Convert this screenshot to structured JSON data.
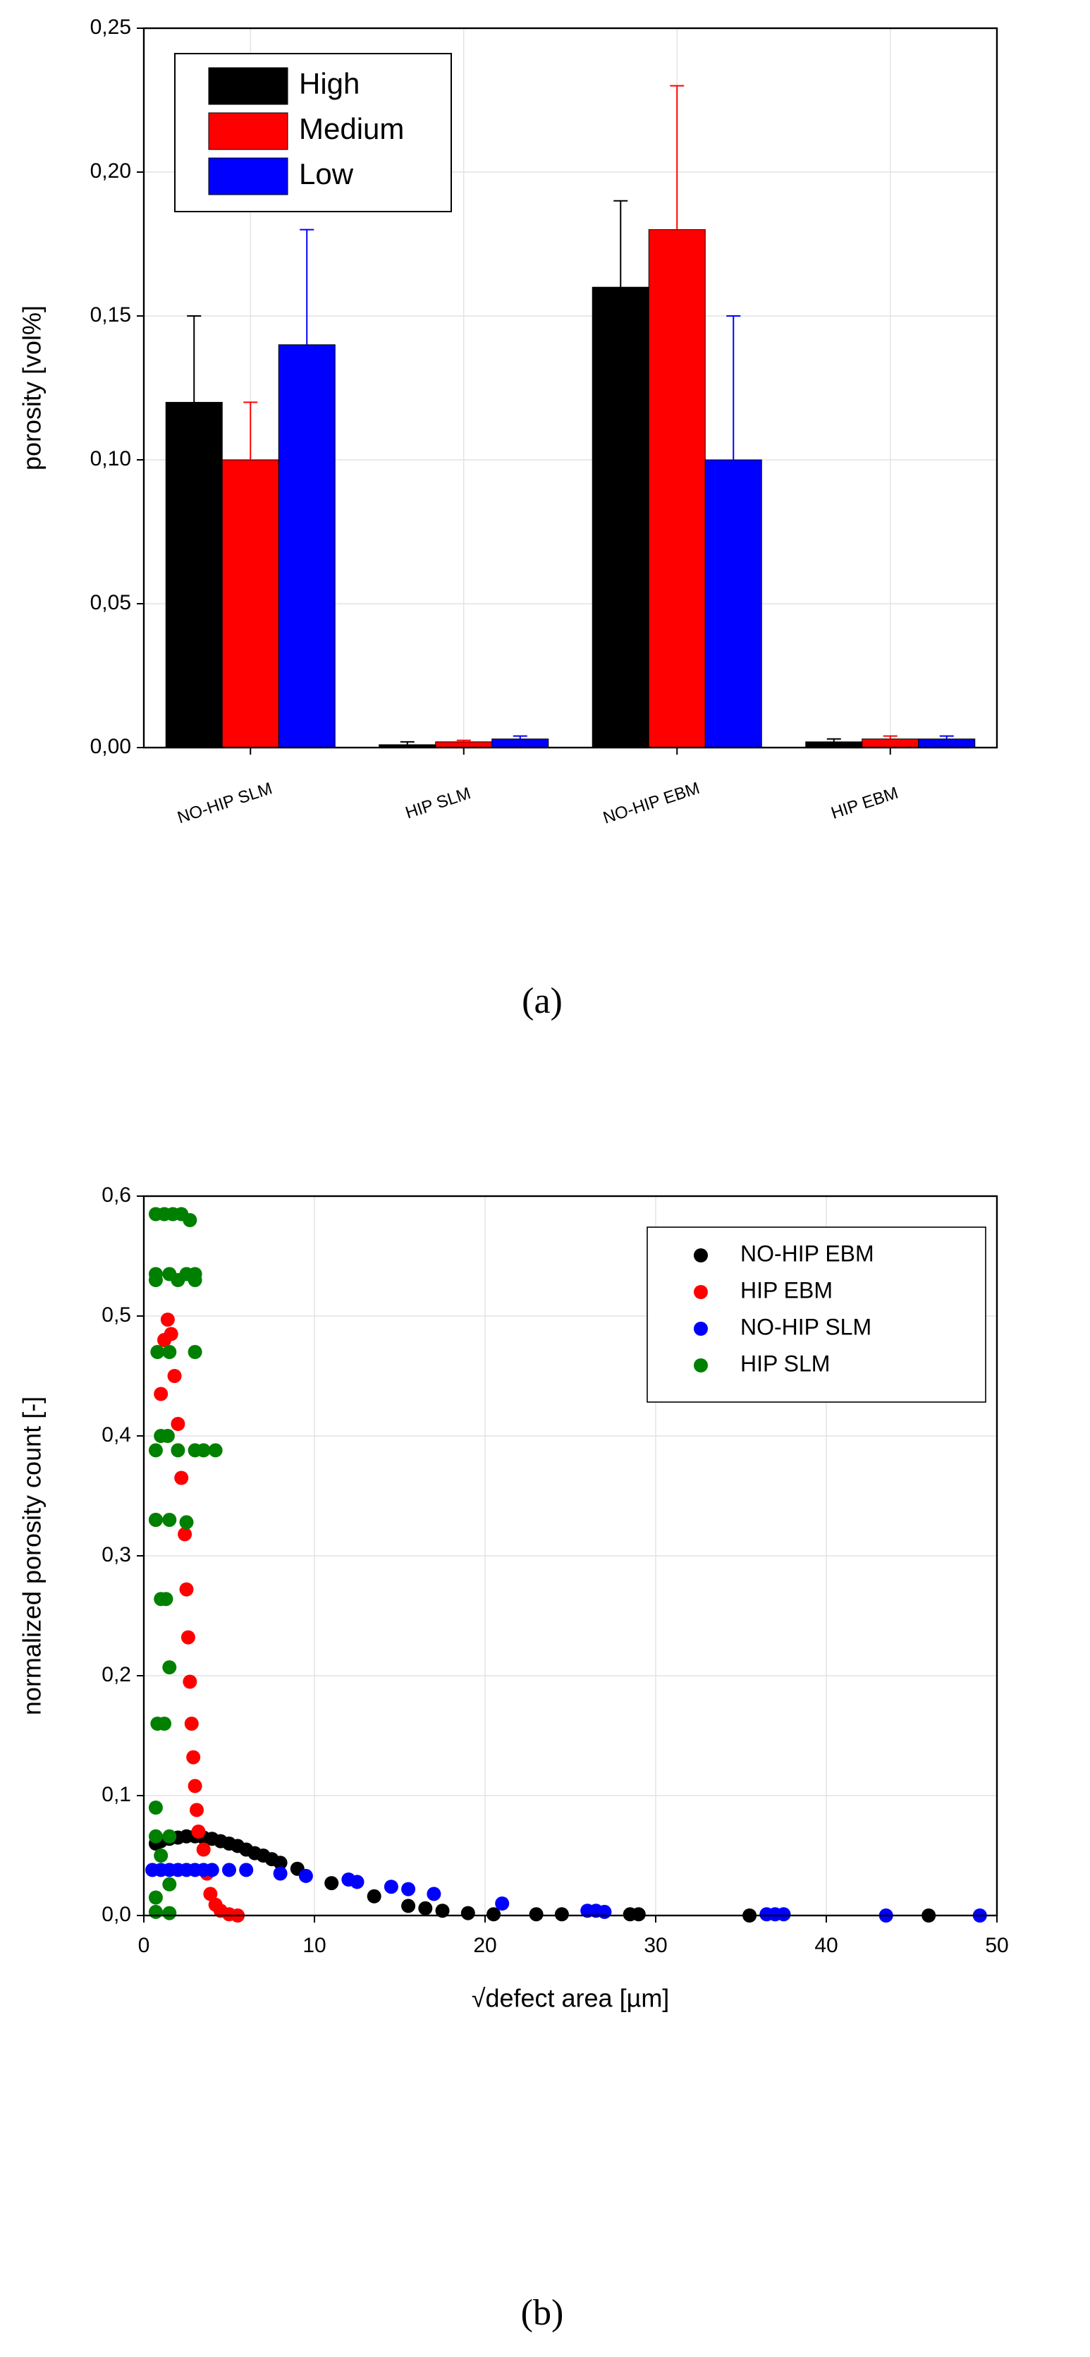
{
  "chart_data": [
    {
      "type": "bar",
      "caption": "(a)",
      "ylabel": "porosity [vol%]",
      "categories": [
        "NO-HIP SLM",
        "HIP SLM",
        "NO-HIP EBM",
        "HIP EBM"
      ],
      "series": [
        {
          "name": "High",
          "color": "#000000",
          "values": [
            0.12,
            0.001,
            0.16,
            0.002
          ],
          "errors": [
            0.03,
            0.001,
            0.03,
            0.001
          ]
        },
        {
          "name": "Medium",
          "color": "#ff0000",
          "values": [
            0.1,
            0.002,
            0.18,
            0.003
          ],
          "errors": [
            0.02,
            0.0005,
            0.05,
            0.001
          ]
        },
        {
          "name": "Low",
          "color": "#0000ff",
          "values": [
            0.14,
            0.003,
            0.1,
            0.003
          ],
          "errors": [
            0.04,
            0.001,
            0.05,
            0.001
          ]
        }
      ],
      "ylim": [
        0,
        0.25
      ],
      "yticks": [
        {
          "value": 0,
          "label": "0,00"
        },
        {
          "value": 0.05,
          "label": "0,05"
        },
        {
          "value": 0.1,
          "label": "0,10"
        },
        {
          "value": 0.15,
          "label": "0,15"
        },
        {
          "value": 0.2,
          "label": "0,20"
        },
        {
          "value": 0.25,
          "label": "0,25"
        }
      ],
      "legend": "upper left"
    },
    {
      "type": "scatter",
      "caption": "(b)",
      "xlabel": "√defect area [µm]",
      "ylabel": "normalized porosity count [-]",
      "series": [
        {
          "name": "NO-HIP EBM",
          "color": "#000000",
          "x": [
            0.7,
            1,
            1.5,
            2,
            2.5,
            3,
            3.5,
            4,
            4.5,
            5,
            5.5,
            6,
            6.5,
            7,
            7.5,
            8,
            9,
            11,
            13.5,
            15.5,
            16.5,
            17.5,
            19,
            20.5,
            23,
            24.5,
            28.5,
            29,
            35.5,
            46
          ],
          "y": [
            0.06,
            0.062,
            0.064,
            0.065,
            0.066,
            0.066,
            0.065,
            0.064,
            0.062,
            0.06,
            0.058,
            0.055,
            0.052,
            0.05,
            0.047,
            0.044,
            0.039,
            0.027,
            0.016,
            0.008,
            0.006,
            0.004,
            0.002,
            0.001,
            0.001,
            0.001,
            0.001,
            0.001,
            0,
            0
          ]
        },
        {
          "name": "HIP EBM",
          "color": "#ff0000",
          "x": [
            0.7,
            1,
            1.2,
            1.4,
            1.6,
            1.8,
            2,
            2.2,
            2.4,
            2.5,
            2.6,
            2.7,
            2.8,
            2.9,
            3,
            3.1,
            3.2,
            3.5,
            3.7,
            3.9,
            4.2,
            4.5,
            5,
            5.5
          ],
          "y": [
            0.33,
            0.435,
            0.48,
            0.497,
            0.485,
            0.45,
            0.41,
            0.365,
            0.318,
            0.272,
            0.232,
            0.195,
            0.16,
            0.132,
            0.108,
            0.088,
            0.07,
            0.055,
            0.035,
            0.018,
            0.009,
            0.004,
            0.001,
            0
          ]
        },
        {
          "name": "NO-HIP SLM",
          "color": "#0000ff",
          "x": [
            0.5,
            1,
            1.5,
            2,
            2.5,
            3,
            3.5,
            4,
            5,
            6,
            8,
            9.5,
            12,
            12.5,
            14.5,
            15.5,
            17,
            21,
            26,
            26.5,
            27,
            36.5,
            37,
            37.5,
            43.5,
            49
          ],
          "y": [
            0.038,
            0.038,
            0.038,
            0.038,
            0.038,
            0.038,
            0.038,
            0.038,
            0.038,
            0.038,
            0.035,
            0.033,
            0.03,
            0.028,
            0.024,
            0.022,
            0.018,
            0.01,
            0.004,
            0.004,
            0.003,
            0.001,
            0.001,
            0.001,
            0,
            0
          ]
        },
        {
          "name": "HIP SLM",
          "color": "#008000",
          "x": [
            0.7,
            1.2,
            1.7,
            2.2,
            2.7,
            0.7,
            1.5,
            2.5,
            3,
            0.7,
            2,
            3,
            0.8,
            1.5,
            3,
            1,
            1.4,
            0.7,
            2,
            3,
            3.5,
            4.2,
            0.7,
            1.5,
            2.5,
            1,
            1.3,
            1.5,
            0.8,
            1.2,
            0.7,
            0.7,
            1.5,
            1,
            1.5,
            0.7,
            0.7,
            1.5
          ],
          "y": [
            0.585,
            0.585,
            0.585,
            0.585,
            0.58,
            0.535,
            0.535,
            0.535,
            0.535,
            0.53,
            0.53,
            0.53,
            0.47,
            0.47,
            0.47,
            0.4,
            0.4,
            0.388,
            0.388,
            0.388,
            0.388,
            0.388,
            0.33,
            0.33,
            0.328,
            0.264,
            0.264,
            0.207,
            0.16,
            0.16,
            0.09,
            0.066,
            0.066,
            0.05,
            0.026,
            0.015,
            0.003,
            0.002
          ]
        }
      ],
      "xlim": [
        0,
        50
      ],
      "xticks": [
        0,
        10,
        20,
        30,
        40,
        50
      ],
      "ylim": [
        0,
        0.6
      ],
      "yticks": [
        {
          "value": 0,
          "label": "0,0"
        },
        {
          "value": 0.1,
          "label": "0,1"
        },
        {
          "value": 0.2,
          "label": "0,2"
        },
        {
          "value": 0.3,
          "label": "0,3"
        },
        {
          "value": 0.4,
          "label": "0,4"
        },
        {
          "value": 0.5,
          "label": "0,5"
        },
        {
          "value": 0.6,
          "label": "0,6"
        }
      ],
      "legend": "upper right"
    }
  ]
}
